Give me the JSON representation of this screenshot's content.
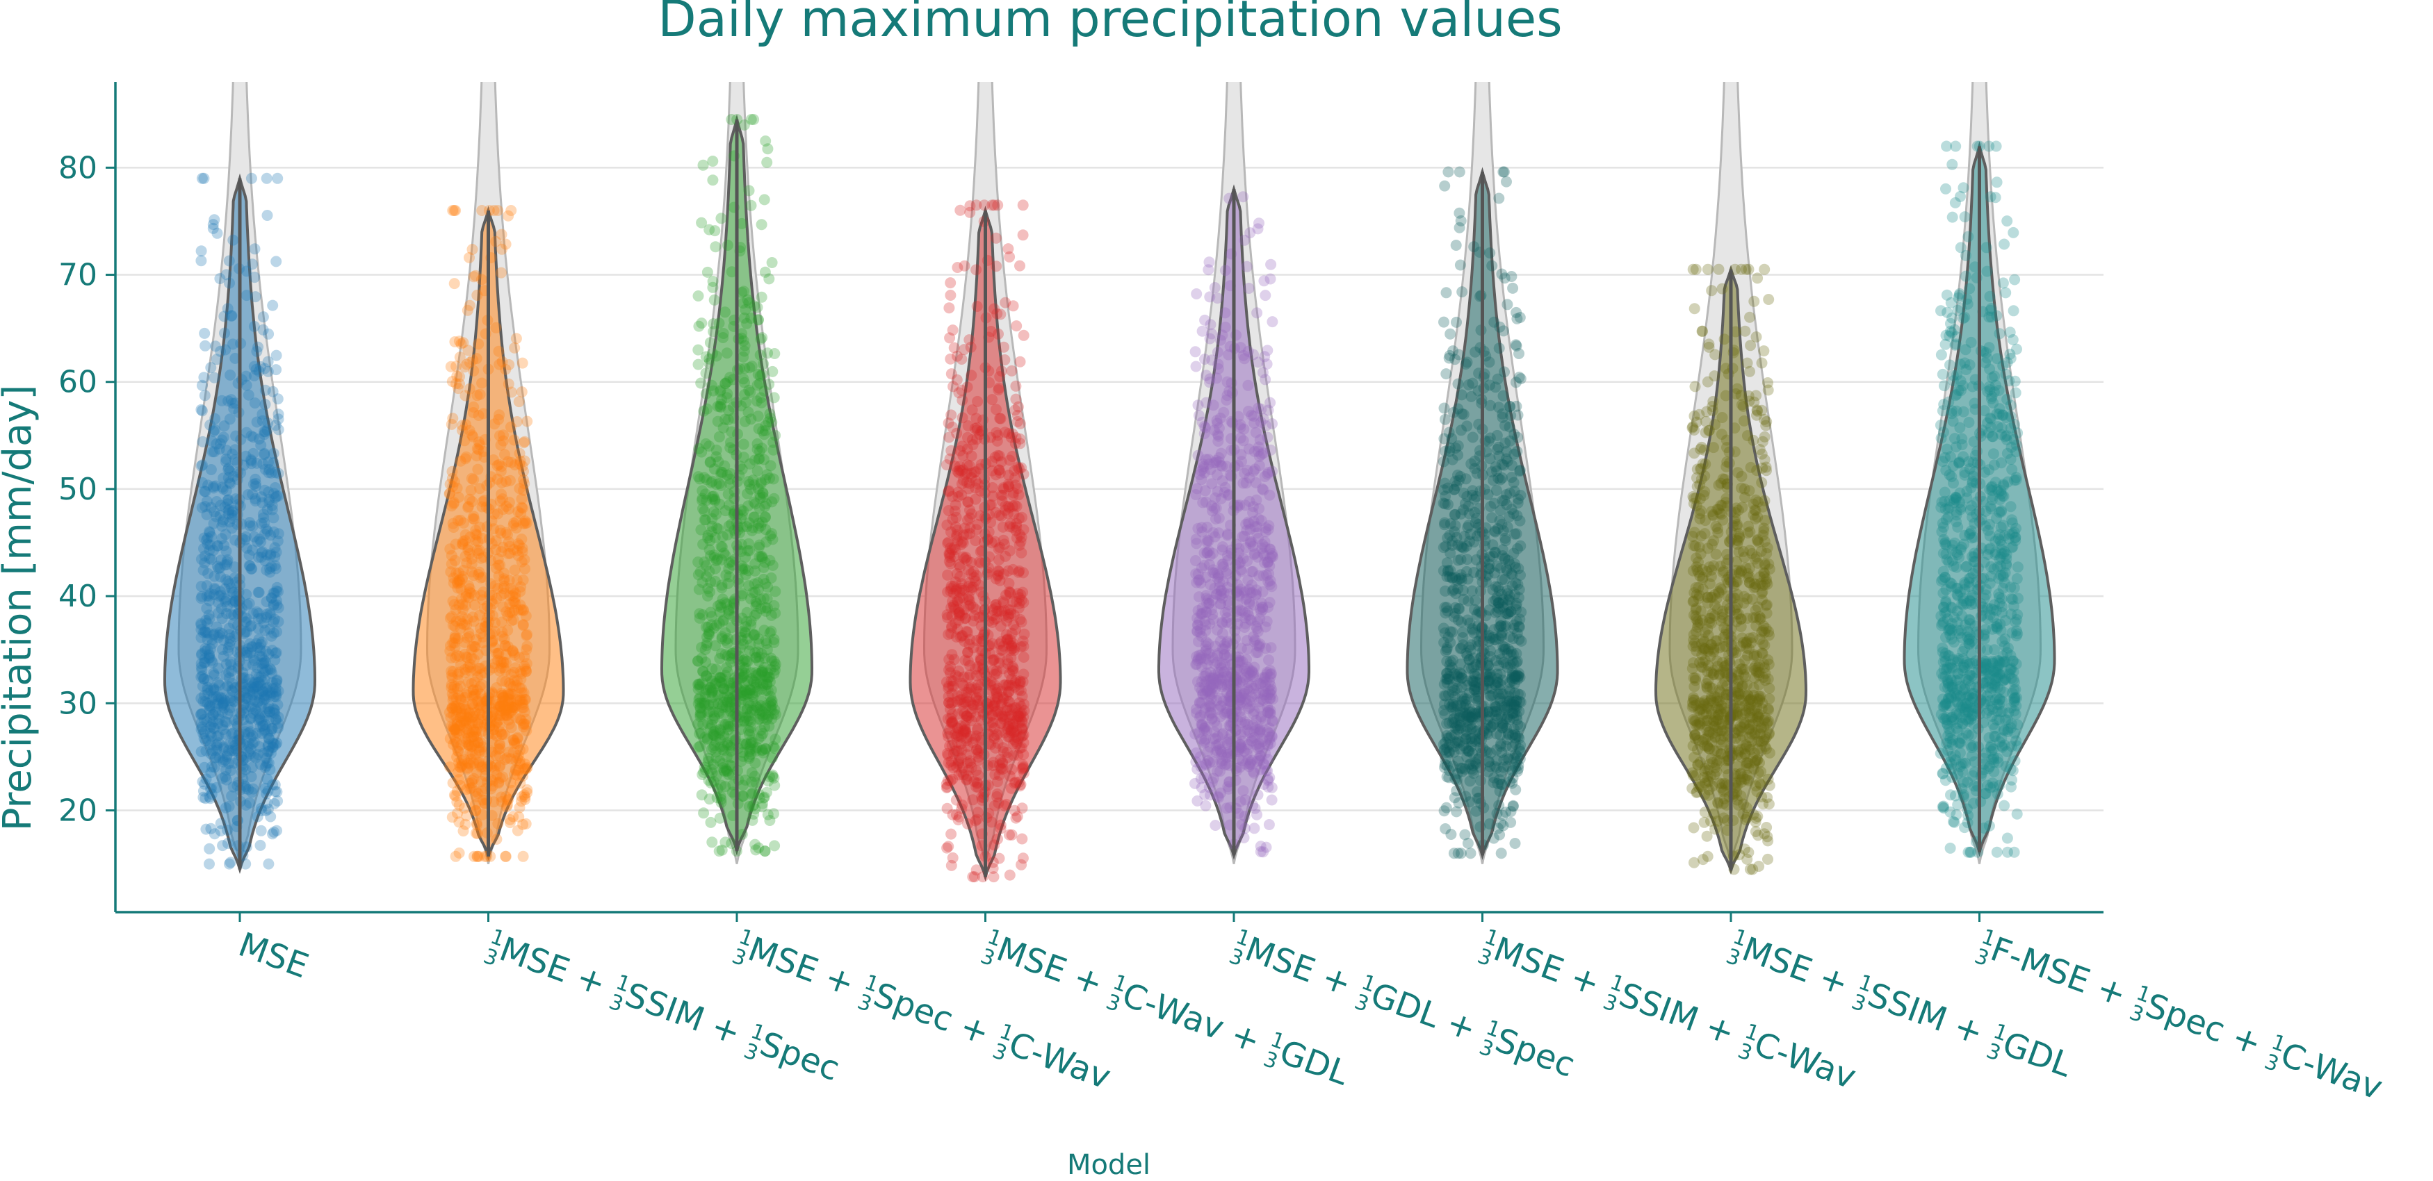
{
  "chart_data": {
    "type": "violin",
    "title": "Daily maximum precipitation values",
    "xlabel": "Model",
    "ylabel": "Precipitation [mm/day]",
    "ylim": [
      10.5,
      88
    ],
    "yticks": [
      20,
      30,
      40,
      50,
      60,
      70,
      80
    ],
    "grid": "horizontal",
    "reference_violin": {
      "min": 15,
      "max": 88,
      "peak": 35,
      "color": "#e6e6e6"
    },
    "series": [
      {
        "label_parts": [
          "MSE"
        ],
        "color": "#1f77b4",
        "min": 14.5,
        "max": 79,
        "peak": 32,
        "points_min": 15,
        "points_max": 79
      },
      {
        "label_parts": [
          "MSE + ",
          "SSIM + ",
          "Spec"
        ],
        "color": "#ff7f0e",
        "min": 15.7,
        "max": 76,
        "peak": 31,
        "points_min": 15.7,
        "points_max": 76
      },
      {
        "label_parts": [
          "MSE + ",
          "Spec + ",
          "C-Wav"
        ],
        "color": "#2ca02c",
        "min": 16.2,
        "max": 84.5,
        "peak": 33,
        "points_min": 16.2,
        "points_max": 84.5
      },
      {
        "label_parts": [
          "MSE + ",
          "C-Wav + ",
          "GDL"
        ],
        "color": "#d62728",
        "min": 13.8,
        "max": 76,
        "peak": 32,
        "points_min": 13.8,
        "points_max": 76.5
      },
      {
        "label_parts": [
          "MSE + ",
          "GDL + ",
          "Spec"
        ],
        "color": "#9467bd",
        "min": 15.8,
        "max": 78,
        "peak": 33,
        "points_min": 16,
        "points_max": 78
      },
      {
        "label_parts": [
          "MSE + ",
          "SSIM + ",
          "C-Wav"
        ],
        "color": "#0e5e5c",
        "min": 15.8,
        "max": 79.6,
        "peak": 33,
        "points_min": 16,
        "points_max": 79.6
      },
      {
        "label_parts": [
          "MSE + ",
          "SSIM + ",
          "GDL"
        ],
        "color": "#6b6b12",
        "min": 14.4,
        "max": 70.5,
        "peak": 31,
        "points_min": 14.5,
        "points_max": 70.5
      },
      {
        "label_parts": [
          "F-MSE + ",
          "Spec + ",
          "C-Wav"
        ],
        "color": "#1a8a8a",
        "min": 16.1,
        "max": 82,
        "peak": 34,
        "points_min": 16.1,
        "points_max": 82
      }
    ],
    "fraction": {
      "numerator": "1",
      "denominator": "3"
    }
  }
}
